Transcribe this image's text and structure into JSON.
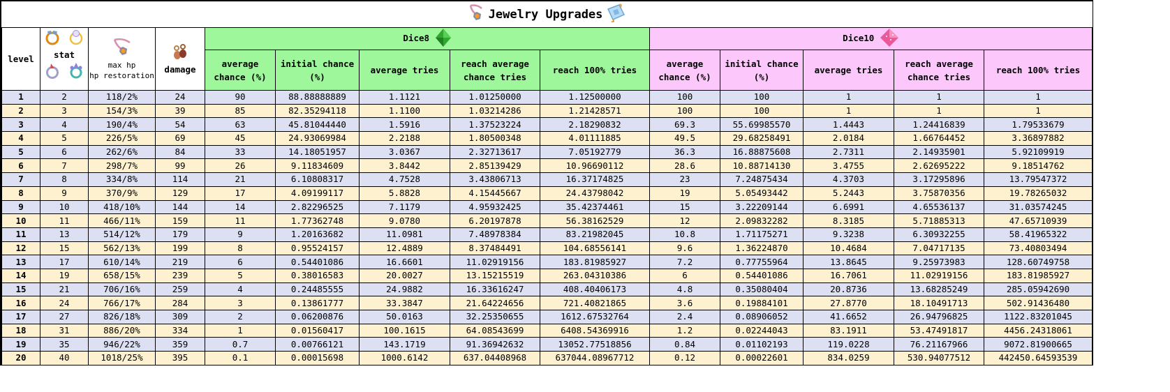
{
  "title": "Jewelry Upgrades",
  "icons": {
    "title_left": "necklace-icon",
    "title_right": "scroll-icon",
    "stat_rings": [
      "gem-ring-icon",
      "pearl-ring-icon",
      "spike-ring-icon",
      "crystal-ring-icon"
    ],
    "max_hp": "necklace-icon",
    "damage": "earrings-icon",
    "dice8": "green-d8-icon",
    "dice10": "pink-d10-icon"
  },
  "colors": {
    "dice8_header": "#9ef79a",
    "dice10_header": "#fcc8fc",
    "row_odd": "#dce0f2",
    "row_even": "#fdf1cf"
  },
  "headers": {
    "level": "level",
    "stat": "stat",
    "max_hp_line1": "max hp",
    "max_hp_line2": "hp restoration",
    "damage": "damage",
    "dice8": "Dice8",
    "dice10": "Dice10",
    "sub": {
      "average_chance": "average chance (%)",
      "initial_chance": "initial chance (%)",
      "average_tries": "average tries",
      "reach_average": "reach average chance tries",
      "reach_100": "reach 100% tries"
    }
  },
  "rows": [
    {
      "level": "1",
      "stat": "2",
      "hp": "118/2%",
      "damage": "24",
      "d8": [
        "90",
        "88.88888889",
        "1.1121",
        "1.01250000",
        "1.12500000"
      ],
      "d10": [
        "100",
        "100",
        "1",
        "1",
        "1"
      ]
    },
    {
      "level": "2",
      "stat": "3",
      "hp": "154/3%",
      "damage": "39",
      "d8": [
        "85",
        "82.35294118",
        "1.1100",
        "1.03214286",
        "1.21428571"
      ],
      "d10": [
        "100",
        "100",
        "1",
        "1",
        "1"
      ]
    },
    {
      "level": "3",
      "stat": "4",
      "hp": "190/4%",
      "damage": "54",
      "d8": [
        "63",
        "45.81044440",
        "1.5916",
        "1.37523224",
        "2.18290832"
      ],
      "d10": [
        "69.3",
        "55.69985570",
        "1.4443",
        "1.24416839",
        "1.79533679"
      ]
    },
    {
      "level": "4",
      "stat": "5",
      "hp": "226/5%",
      "damage": "69",
      "d8": [
        "45",
        "24.93069984",
        "2.2188",
        "1.80500348",
        "4.01111885"
      ],
      "d10": [
        "49.5",
        "29.68258491",
        "2.0184",
        "1.66764452",
        "3.36897882"
      ]
    },
    {
      "level": "5",
      "stat": "6",
      "hp": "262/6%",
      "damage": "84",
      "d8": [
        "33",
        "14.18051957",
        "3.0367",
        "2.32713617",
        "7.05192779"
      ],
      "d10": [
        "36.3",
        "16.88875608",
        "2.7311",
        "2.14935901",
        "5.92109919"
      ]
    },
    {
      "level": "6",
      "stat": "7",
      "hp": "298/7%",
      "damage": "99",
      "d8": [
        "26",
        "9.11834609",
        "3.8442",
        "2.85139429",
        "10.96690112"
      ],
      "d10": [
        "28.6",
        "10.88714130",
        "3.4755",
        "2.62695222",
        "9.18514762"
      ]
    },
    {
      "level": "7",
      "stat": "8",
      "hp": "334/8%",
      "damage": "114",
      "d8": [
        "21",
        "6.10808317",
        "4.7528",
        "3.43806713",
        "16.37174825"
      ],
      "d10": [
        "23",
        "7.24875434",
        "4.3703",
        "3.17295896",
        "13.79547372"
      ]
    },
    {
      "level": "8",
      "stat": "9",
      "hp": "370/9%",
      "damage": "129",
      "d8": [
        "17",
        "4.09199117",
        "5.8828",
        "4.15445667",
        "24.43798042"
      ],
      "d10": [
        "19",
        "5.05493442",
        "5.2443",
        "3.75870356",
        "19.78265032"
      ]
    },
    {
      "level": "9",
      "stat": "10",
      "hp": "418/10%",
      "damage": "144",
      "d8": [
        "14",
        "2.82296525",
        "7.1179",
        "4.95932425",
        "35.42374461"
      ],
      "d10": [
        "15",
        "3.22209144",
        "6.6991",
        "4.65536137",
        "31.03574245"
      ]
    },
    {
      "level": "10",
      "stat": "11",
      "hp": "466/11%",
      "damage": "159",
      "d8": [
        "11",
        "1.77362748",
        "9.0780",
        "6.20197878",
        "56.38162529"
      ],
      "d10": [
        "12",
        "2.09832282",
        "8.3185",
        "5.71885313",
        "47.65710939"
      ]
    },
    {
      "level": "11",
      "stat": "13",
      "hp": "514/12%",
      "damage": "179",
      "d8": [
        "9",
        "1.20163682",
        "11.0981",
        "7.48978384",
        "83.21982045"
      ],
      "d10": [
        "10.8",
        "1.71175271",
        "9.3238",
        "6.30932255",
        "58.41965322"
      ]
    },
    {
      "level": "12",
      "stat": "15",
      "hp": "562/13%",
      "damage": "199",
      "d8": [
        "8",
        "0.95524157",
        "12.4889",
        "8.37484491",
        "104.68556141"
      ],
      "d10": [
        "9.6",
        "1.36224870",
        "10.4684",
        "7.04717135",
        "73.40803494"
      ]
    },
    {
      "level": "13",
      "stat": "17",
      "hp": "610/14%",
      "damage": "219",
      "d8": [
        "6",
        "0.54401086",
        "16.6601",
        "11.02919156",
        "183.81985927"
      ],
      "d10": [
        "7.2",
        "0.77755964",
        "13.8645",
        "9.25973983",
        "128.60749758"
      ]
    },
    {
      "level": "14",
      "stat": "19",
      "hp": "658/15%",
      "damage": "239",
      "d8": [
        "5",
        "0.38016583",
        "20.0027",
        "13.15215519",
        "263.04310386"
      ],
      "d10": [
        "6",
        "0.54401086",
        "16.7061",
        "11.02919156",
        "183.81985927"
      ]
    },
    {
      "level": "15",
      "stat": "21",
      "hp": "706/16%",
      "damage": "259",
      "d8": [
        "4",
        "0.24485555",
        "24.9882",
        "16.33616247",
        "408.40406173"
      ],
      "d10": [
        "4.8",
        "0.35080404",
        "20.8736",
        "13.68285249",
        "285.05942690"
      ]
    },
    {
      "level": "16",
      "stat": "24",
      "hp": "766/17%",
      "damage": "284",
      "d8": [
        "3",
        "0.13861777",
        "33.3847",
        "21.64224656",
        "721.40821865"
      ],
      "d10": [
        "3.6",
        "0.19884101",
        "27.8770",
        "18.10491713",
        "502.91436480"
      ]
    },
    {
      "level": "17",
      "stat": "27",
      "hp": "826/18%",
      "damage": "309",
      "d8": [
        "2",
        "0.06200876",
        "50.0163",
        "32.25350655",
        "1612.67532764"
      ],
      "d10": [
        "2.4",
        "0.08906052",
        "41.6652",
        "26.94796825",
        "1122.83201045"
      ]
    },
    {
      "level": "18",
      "stat": "31",
      "hp": "886/20%",
      "damage": "334",
      "d8": [
        "1",
        "0.01560417",
        "100.1615",
        "64.08543699",
        "6408.54369916"
      ],
      "d10": [
        "1.2",
        "0.02244043",
        "83.1911",
        "53.47491817",
        "4456.24318061"
      ]
    },
    {
      "level": "19",
      "stat": "35",
      "hp": "946/22%",
      "damage": "359",
      "d8": [
        "0.7",
        "0.00766121",
        "143.1719",
        "91.36942632",
        "13052.77518856"
      ],
      "d10": [
        "0.84",
        "0.01102193",
        "119.0228",
        "76.21167966",
        "9072.81900665"
      ]
    },
    {
      "level": "20",
      "stat": "40",
      "hp": "1018/25%",
      "damage": "395",
      "d8": [
        "0.1",
        "0.00015698",
        "1000.6142",
        "637.04408968",
        "637044.08967712"
      ],
      "d10": [
        "0.12",
        "0.00022601",
        "834.0259",
        "530.94077512",
        "442450.64593539"
      ]
    }
  ]
}
